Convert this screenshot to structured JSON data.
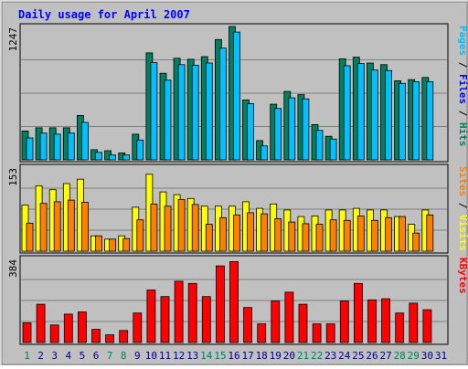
{
  "chart_data": {
    "type": "bar",
    "title": "Daily usage for April 2007",
    "days": [
      "1",
      "2",
      "3",
      "4",
      "5",
      "6",
      "7",
      "8",
      "9",
      "10",
      "11",
      "12",
      "13",
      "14",
      "15",
      "16",
      "17",
      "18",
      "19",
      "20",
      "21",
      "22",
      "23",
      "24",
      "25",
      "26",
      "27",
      "28",
      "29",
      "30",
      "31"
    ],
    "weekend_days": [
      "1",
      "7",
      "8",
      "14",
      "15",
      "21",
      "22",
      "28",
      "29"
    ],
    "panels": [
      {
        "key": "top",
        "max_label": "1247",
        "ymax": 1247,
        "side_labels": [
          {
            "text": "Hits",
            "color": "#00805c"
          },
          {
            "text": " / ",
            "color": "#000000"
          },
          {
            "text": "Files",
            "color": "#0000ff"
          },
          {
            "text": " / ",
            "color": "#000000"
          },
          {
            "text": "Pages",
            "color": "#00c0ff"
          }
        ],
        "series": [
          {
            "name": "Hits",
            "color": "#008060",
            "values": [
              270,
              300,
              300,
              300,
              415,
              95,
              85,
              65,
              240,
              1000,
              810,
              950,
              940,
              965,
              1125,
              1247,
              560,
              180,
              520,
              640,
              610,
              330,
              220,
              945,
              960,
              905,
              890,
              740,
              750,
              770,
              0
            ]
          },
          {
            "name": "Files",
            "color": "#00c0ff",
            "values": [
              205,
              250,
              240,
              250,
              350,
              70,
              45,
              45,
              185,
              910,
              745,
              890,
              885,
              905,
              1045,
              1195,
              525,
              130,
              480,
              580,
              570,
              275,
              195,
              880,
              900,
              840,
              835,
              715,
              730,
              730,
              0
            ]
          }
        ]
      },
      {
        "key": "mid",
        "max_label": "153",
        "ymax": 153,
        "side_labels": [
          {
            "text": "Visits",
            "color": "#ffff00"
          },
          {
            "text": " / ",
            "color": "#000000"
          },
          {
            "text": "Sites",
            "color": "#ff8000"
          }
        ],
        "series": [
          {
            "name": "Visits",
            "color": "#ffff00",
            "values": [
              84,
              119,
              112,
              123,
              131,
              28,
              22,
              28,
              80,
              140,
              108,
              103,
              96,
              82,
              82,
              82,
              90,
              78,
              86,
              75,
              63,
              64,
              75,
              75,
              78,
              75,
              75,
              63,
              49,
              75,
              0
            ]
          },
          {
            "name": "Sites",
            "color": "#ff8000",
            "values": [
              51,
              87,
              90,
              93,
              89,
              28,
              22,
              23,
              57,
              86,
              82,
              94,
              85,
              49,
              61,
              66,
              70,
              68,
              59,
              53,
              50,
              49,
              57,
              56,
              64,
              56,
              61,
              63,
              33,
              66,
              0
            ]
          }
        ]
      },
      {
        "key": "bot",
        "max_label": "384",
        "ymax": 384,
        "side_labels": [
          {
            "text": "KBytes",
            "color": "#ff0000"
          }
        ],
        "series": [
          {
            "name": "KBytes",
            "color": "#ff0000",
            "values": [
              90,
              175,
              80,
              130,
              140,
              60,
              35,
              55,
              135,
              240,
              210,
              280,
              270,
              210,
              350,
              370,
              160,
              85,
              190,
              230,
              175,
              85,
              85,
              190,
              270,
              195,
              200,
              135,
              180,
              150,
              0
            ]
          }
        ]
      }
    ],
    "grid": true,
    "legend": "right-vertical"
  },
  "colors": {
    "background": "#c0c0c0",
    "plot_background": "#c0c0c0",
    "title": "#0000ff",
    "weekday_label": "#000080",
    "weekend_label": "#00805c",
    "grid": "#808080"
  }
}
